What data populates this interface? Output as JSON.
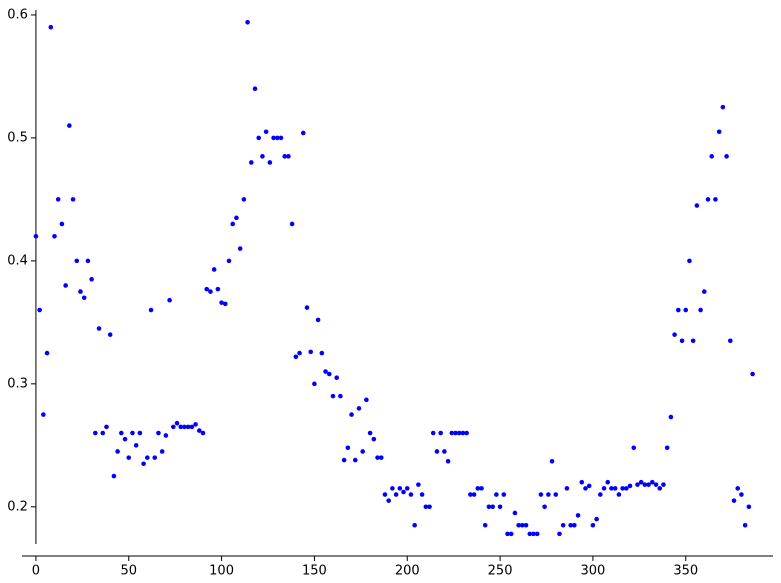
{
  "chart_data": {
    "type": "scatter",
    "x": [
      0,
      2,
      4,
      6,
      8,
      10,
      12,
      14,
      16,
      18,
      20,
      22,
      24,
      26,
      28,
      30,
      32,
      34,
      36,
      38,
      40,
      42,
      44,
      46,
      48,
      50,
      52,
      54,
      56,
      58,
      60,
      62,
      64,
      66,
      68,
      70,
      72,
      74,
      76,
      78,
      80,
      82,
      84,
      86,
      88,
      90,
      92,
      94,
      96,
      98,
      100,
      102,
      104,
      106,
      108,
      110,
      112,
      114,
      116,
      118,
      120,
      122,
      124,
      126,
      128,
      130,
      132,
      134,
      136,
      138,
      140,
      142,
      144,
      146,
      148,
      150,
      152,
      154,
      156,
      158,
      160,
      162,
      164,
      166,
      168,
      170,
      172,
      174,
      176,
      178,
      180,
      182,
      184,
      186,
      188,
      190,
      192,
      194,
      196,
      198,
      200,
      202,
      204,
      206,
      208,
      210,
      212,
      214,
      216,
      218,
      220,
      222,
      224,
      226,
      228,
      230,
      232,
      234,
      236,
      238,
      240,
      242,
      244,
      246,
      248,
      250,
      252,
      254,
      256,
      258,
      260,
      262,
      264,
      266,
      268,
      270,
      272,
      274,
      276,
      278,
      280,
      282,
      284,
      286,
      288,
      290,
      292,
      294,
      296,
      298,
      300,
      302,
      304,
      306,
      308,
      310,
      312,
      314,
      316,
      318,
      320,
      322,
      324,
      326,
      328,
      330,
      332,
      334,
      336,
      338,
      340,
      342,
      344,
      346,
      348,
      350,
      352,
      354,
      356,
      358,
      360,
      362,
      364,
      366,
      368,
      370,
      372,
      374,
      376,
      378,
      380,
      382,
      384,
      386
    ],
    "series": [
      {
        "color": "#0000ff",
        "values": [
          0.42,
          0.36,
          0.275,
          0.325,
          0.59,
          0.42,
          0.45,
          0.43,
          0.38,
          0.51,
          0.45,
          0.4,
          0.375,
          0.37,
          0.4,
          0.385,
          0.26,
          0.345,
          0.26,
          0.265,
          0.34,
          0.225,
          0.245,
          0.26,
          0.255,
          0.24,
          0.26,
          0.25,
          0.26,
          0.235,
          0.24,
          0.36,
          0.24,
          0.26,
          0.245,
          0.258,
          0.368,
          0.265,
          0.268,
          0.265,
          0.265,
          0.265,
          0.265,
          0.267,
          0.262,
          0.26,
          0.377,
          0.375,
          0.393,
          0.377,
          0.366,
          0.365,
          0.4,
          0.43,
          0.435,
          0.41,
          0.45,
          0.594,
          0.48,
          0.54,
          0.5,
          0.485,
          0.505,
          0.48,
          0.5,
          0.5,
          0.5,
          0.485,
          0.485,
          0.43,
          0.322,
          0.325,
          0.504,
          0.362,
          0.326,
          0.3,
          0.352,
          0.325,
          0.31,
          0.308,
          0.29,
          0.305,
          0.29,
          0.238,
          0.248,
          0.275,
          0.238,
          0.28,
          0.245,
          0.287,
          0.26,
          0.255,
          0.24,
          0.24,
          0.21,
          0.205,
          0.215,
          0.21,
          0.215,
          0.212,
          0.215,
          0.21,
          0.185,
          0.218,
          0.21,
          0.2,
          0.2,
          0.26,
          0.245,
          0.26,
          0.245,
          0.237,
          0.26,
          0.26,
          0.26,
          0.26,
          0.26,
          0.21,
          0.21,
          0.215,
          0.215,
          0.185,
          0.2,
          0.2,
          0.21,
          0.2,
          0.21,
          0.178,
          0.178,
          0.195,
          0.185,
          0.185,
          0.185,
          0.178,
          0.178,
          0.178,
          0.21,
          0.2,
          0.21,
          0.237,
          0.21,
          0.178,
          0.185,
          0.215,
          0.185,
          0.185,
          0.193,
          0.22,
          0.215,
          0.217,
          0.185,
          0.19,
          0.21,
          0.215,
          0.22,
          0.215,
          0.215,
          0.21,
          0.215,
          0.215,
          0.217,
          0.248,
          0.218,
          0.22,
          0.218,
          0.218,
          0.22,
          0.218,
          0.215,
          0.218,
          0.248,
          0.273,
          0.34,
          0.36,
          0.335,
          0.36,
          0.4,
          0.335,
          0.445,
          0.36,
          0.375,
          0.45,
          0.485,
          0.45,
          0.505,
          0.525,
          0.485,
          0.335,
          0.205,
          0.215,
          0.21,
          0.185,
          0.2,
          0.308
        ]
      }
    ],
    "xlim": [
      -7.5,
      397
    ],
    "ylim": [
      0.16,
      0.604
    ],
    "xticks": [
      0,
      50,
      100,
      150,
      200,
      250,
      300,
      350
    ],
    "yticks": [
      0.2,
      0.3,
      0.4,
      0.5,
      0.6
    ]
  }
}
